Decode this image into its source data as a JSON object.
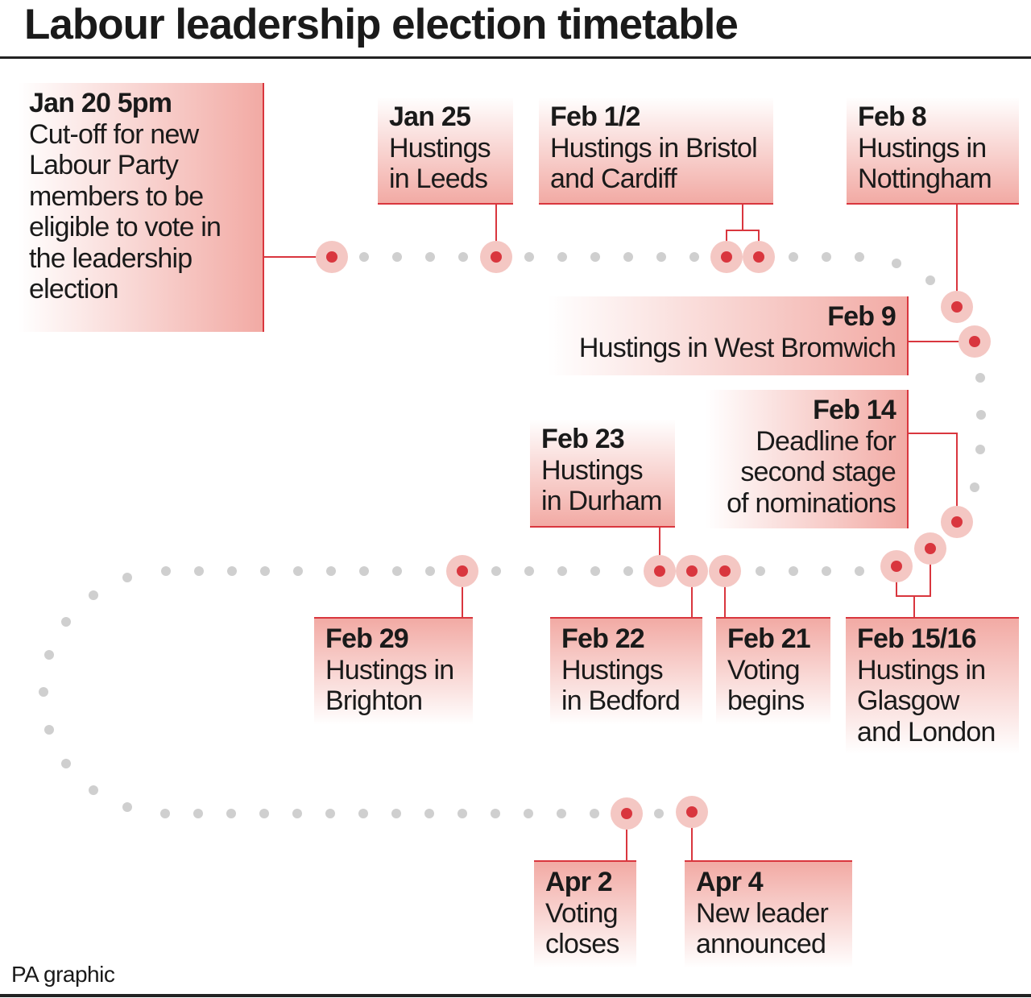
{
  "header": {
    "title": "Labour leadership election timetable"
  },
  "events": [
    {
      "date": "Jan 20 5pm",
      "lines": [
        "Cut-off for new",
        "Labour Party",
        "members to be",
        "eligible to vote in",
        "the leadership",
        "election"
      ]
    },
    {
      "date": "Jan 25",
      "lines": [
        "Hustings",
        "in Leeds"
      ]
    },
    {
      "date": "Feb 1/2",
      "lines": [
        "Hustings in Bristol",
        "and Cardiff"
      ]
    },
    {
      "date": "Feb 8",
      "lines": [
        "Hustings in",
        "Nottingham"
      ]
    },
    {
      "date": "Feb 9",
      "lines": [
        "Hustings in West Bromwich"
      ]
    },
    {
      "date": "Feb 14",
      "lines": [
        "Deadline for",
        "second stage",
        "of nominations"
      ]
    },
    {
      "date": "Feb 23",
      "lines": [
        "Hustings",
        "in Durham"
      ]
    },
    {
      "date": "Feb 29",
      "lines": [
        "Hustings in",
        "Brighton"
      ]
    },
    {
      "date": "Feb 22",
      "lines": [
        "Hustings",
        "in Bedford"
      ]
    },
    {
      "date": "Feb 21",
      "lines": [
        "Voting",
        "begins"
      ]
    },
    {
      "date": "Feb 15/16",
      "lines": [
        "Hustings in",
        "Glasgow",
        "and London"
      ]
    },
    {
      "date": "Apr 2",
      "lines": [
        "Voting",
        "closes"
      ]
    },
    {
      "date": "Apr 4",
      "lines": [
        "New leader",
        "announced"
      ]
    }
  ],
  "footer": {
    "credit": "PA graphic"
  }
}
